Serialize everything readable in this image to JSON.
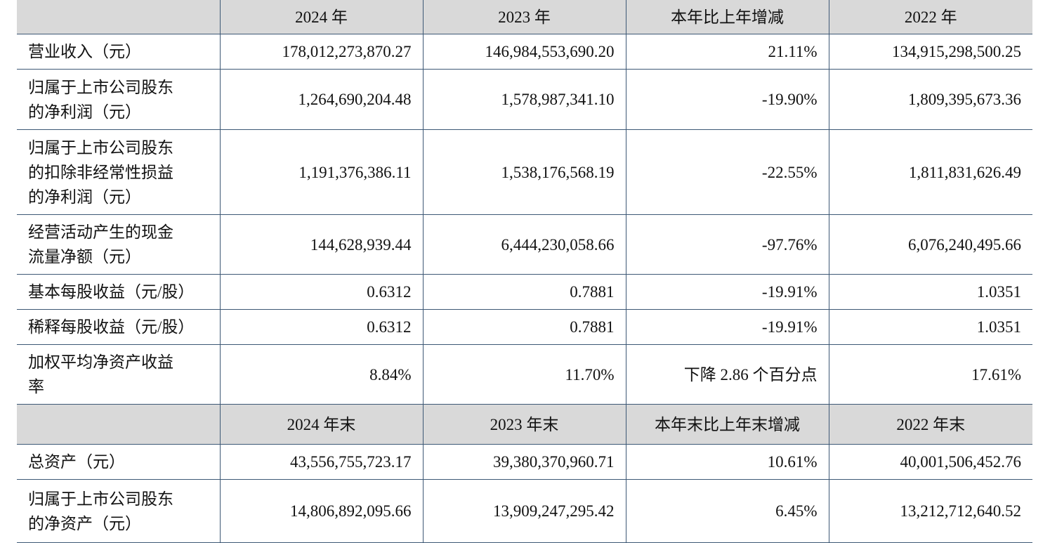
{
  "table": {
    "header": [
      "2024 年",
      "2023 年",
      "本年比上年增减",
      "2022 年"
    ],
    "rows": [
      {
        "label": [
          "营业收入（元）"
        ],
        "cells": [
          "178,012,273,870.27",
          "146,984,553,690.20",
          "21.11%",
          "134,915,298,500.25"
        ]
      },
      {
        "label": [
          "归属于上市公司股东",
          "的净利润（元）"
        ],
        "cells": [
          "1,264,690,204.48",
          "1,578,987,341.10",
          "-19.90%",
          "1,809,395,673.36"
        ]
      },
      {
        "label": [
          "归属于上市公司股东",
          "的扣除非经常性损益",
          "的净利润（元）"
        ],
        "cells": [
          "1,191,376,386.11",
          "1,538,176,568.19",
          "-22.55%",
          "1,811,831,626.49"
        ]
      },
      {
        "label": [
          "经营活动产生的现金",
          "流量净额（元）"
        ],
        "cells": [
          "144,628,939.44",
          "6,444,230,058.66",
          "-97.76%",
          "6,076,240,495.66"
        ]
      },
      {
        "label": [
          "基本每股收益（元/股）"
        ],
        "cells": [
          "0.6312",
          "0.7881",
          "-19.91%",
          "1.0351"
        ]
      },
      {
        "label": [
          "稀释每股收益（元/股）"
        ],
        "cells": [
          "0.6312",
          "0.7881",
          "-19.91%",
          "1.0351"
        ]
      },
      {
        "label": [
          "加权平均净资产收益",
          "率"
        ],
        "cells": [
          "8.84%",
          "11.70%",
          "下降 2.86 个百分点",
          "17.61%"
        ]
      }
    ],
    "header2": [
      "2024 年末",
      "2023 年末",
      "本年末比上年末增减",
      "2022 年末"
    ],
    "rows2": [
      {
        "label": [
          "总资产（元）"
        ],
        "cells": [
          "43,556,755,723.17",
          "39,380,370,960.71",
          "10.61%",
          "40,001,506,452.76"
        ]
      },
      {
        "label": [
          "归属于上市公司股东",
          "的净资产（元）"
        ],
        "cells": [
          "14,806,892,095.66",
          "13,909,247,295.42",
          "6.45%",
          "13,212,712,640.52"
        ]
      }
    ]
  }
}
